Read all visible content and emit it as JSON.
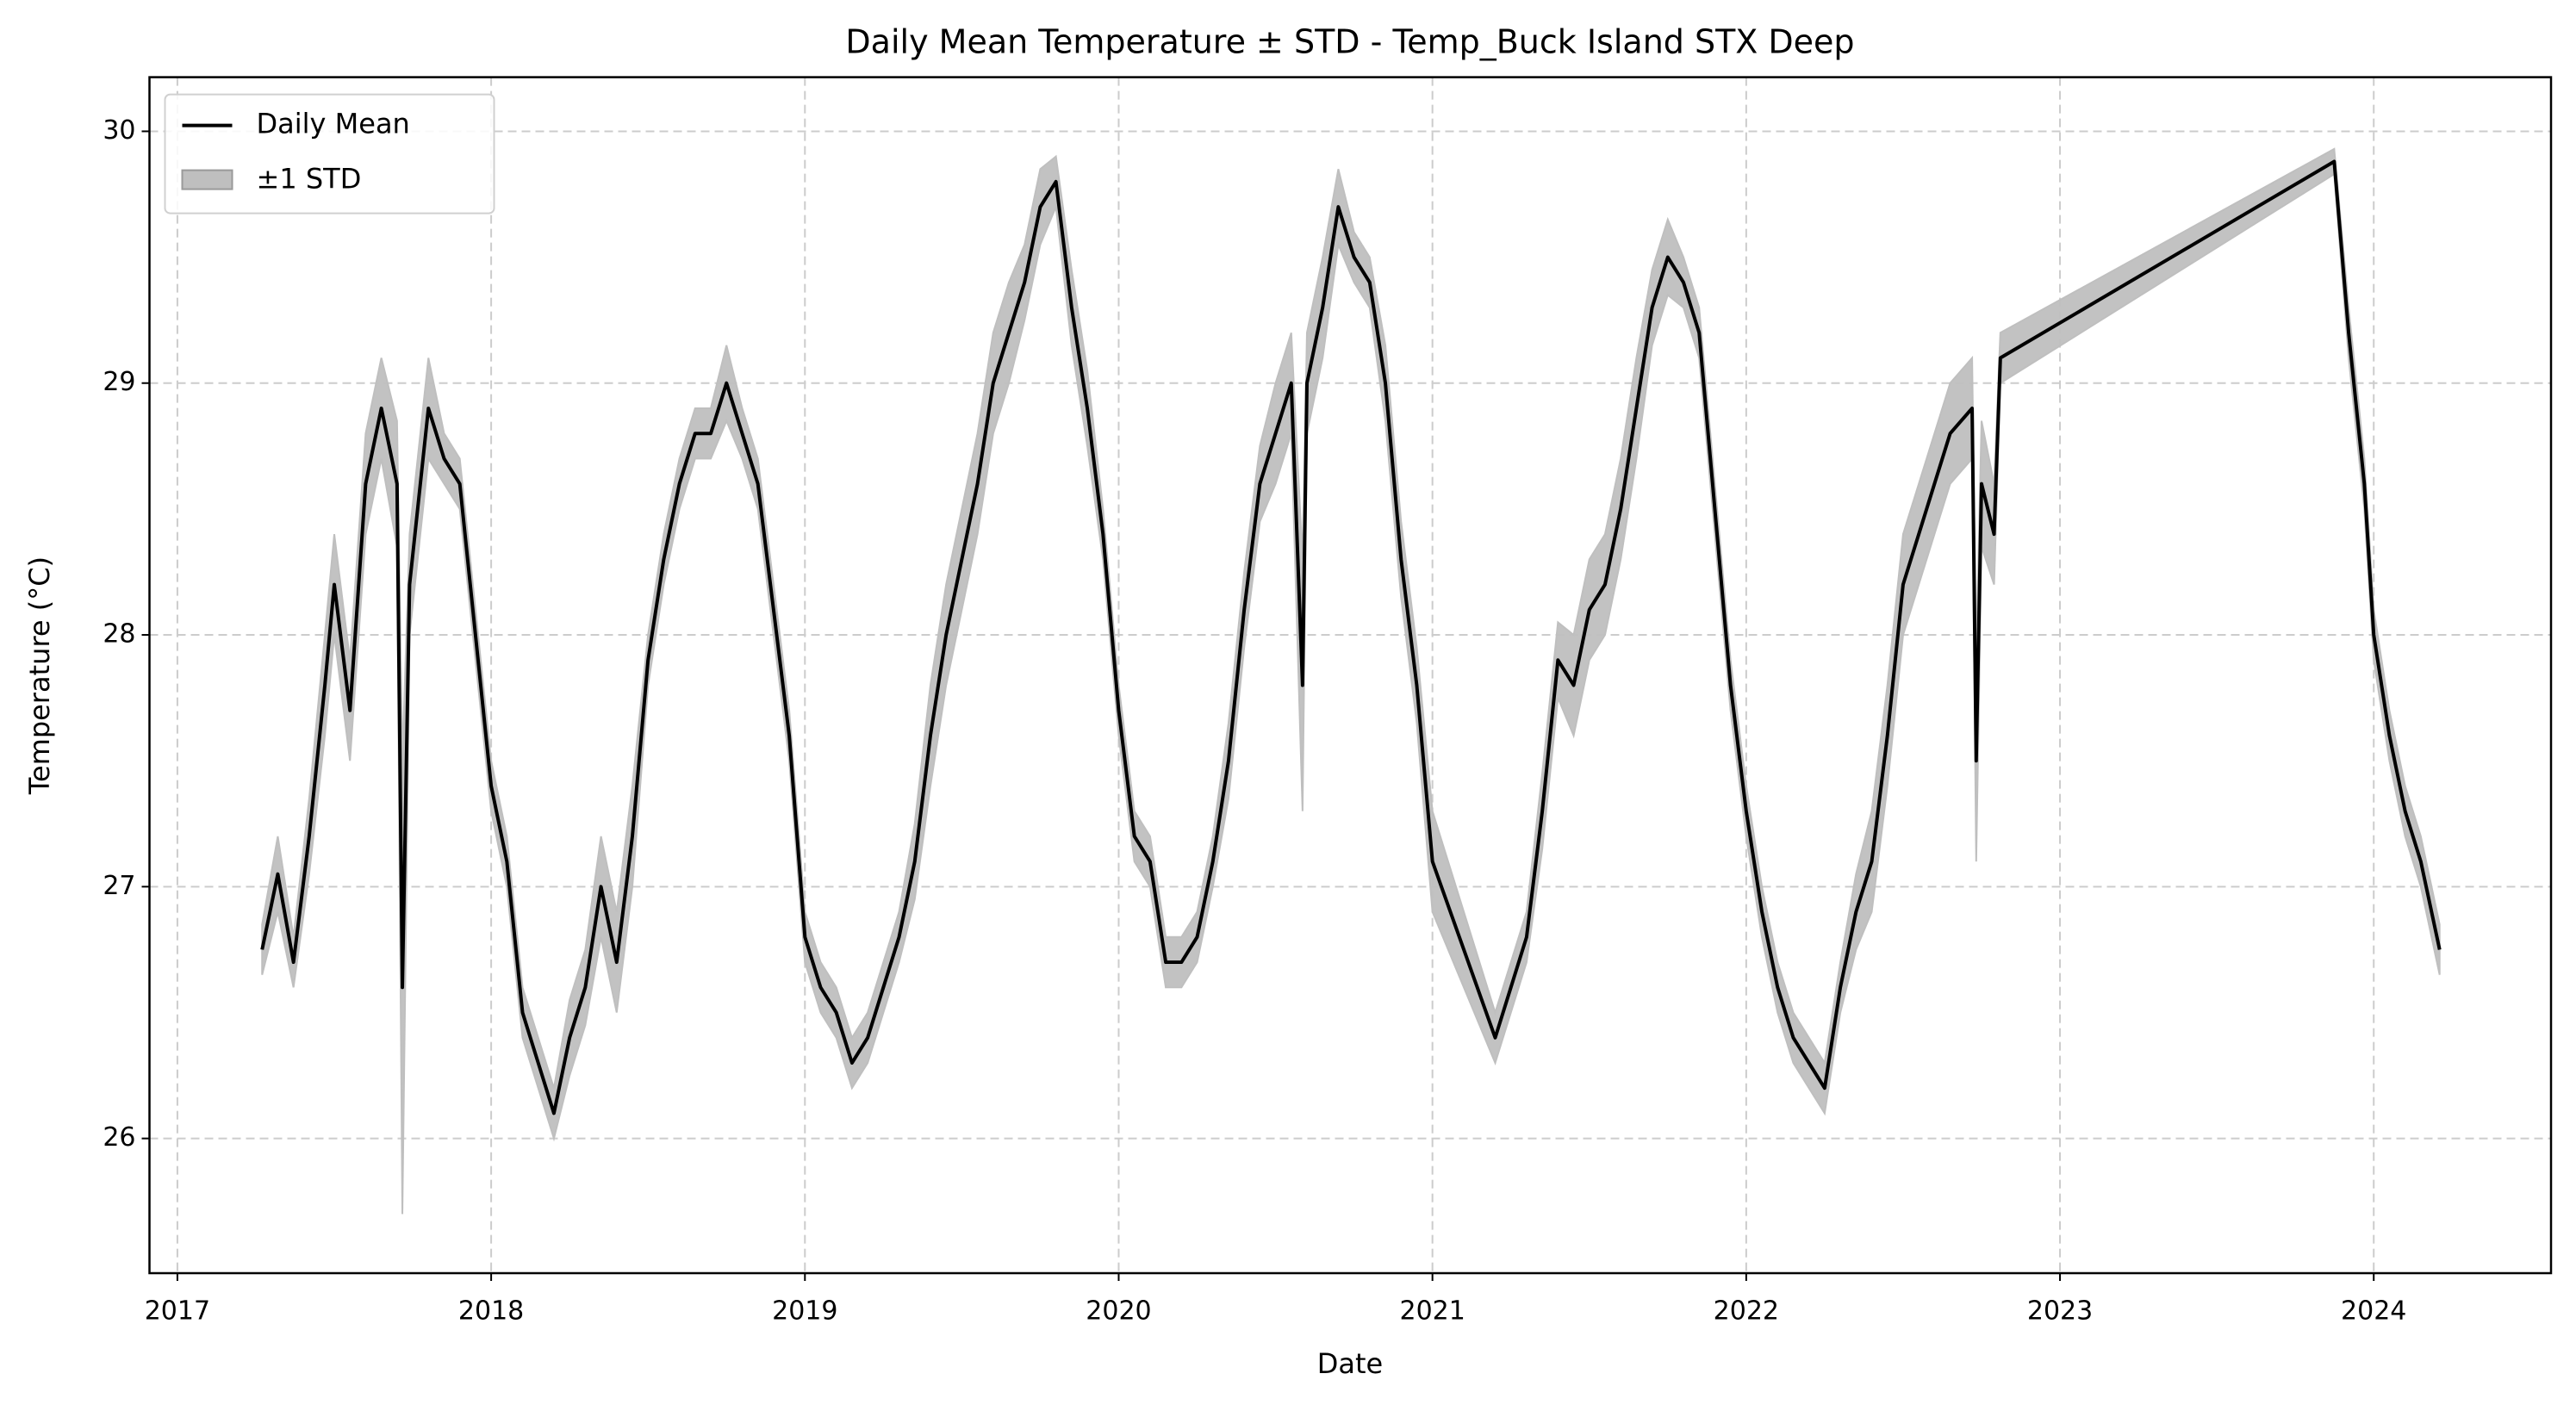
{
  "chart_data": {
    "type": "line",
    "title": "Daily Mean Temperature ± STD - Temp_Buck Island STX Deep",
    "xlabel": "Date",
    "ylabel": "Temperature (°C)",
    "x": [
      2017.27,
      2017.32,
      2017.37,
      2017.42,
      2017.47,
      2017.5,
      2017.55,
      2017.6,
      2017.65,
      2017.7,
      2017.717,
      2017.74,
      2017.8,
      2017.85,
      2017.9,
      2017.95,
      2018.0,
      2018.05,
      2018.1,
      2018.15,
      2018.2,
      2018.25,
      2018.3,
      2018.35,
      2018.4,
      2018.45,
      2018.5,
      2018.55,
      2018.6,
      2018.65,
      2018.7,
      2018.75,
      2018.8,
      2018.85,
      2018.9,
      2018.95,
      2019.0,
      2019.05,
      2019.1,
      2019.15,
      2019.2,
      2019.25,
      2019.3,
      2019.35,
      2019.4,
      2019.45,
      2019.5,
      2019.55,
      2019.6,
      2019.65,
      2019.7,
      2019.75,
      2019.8,
      2019.85,
      2019.9,
      2019.95,
      2020.0,
      2020.05,
      2020.1,
      2020.15,
      2020.2,
      2020.25,
      2020.3,
      2020.35,
      2020.4,
      2020.45,
      2020.5,
      2020.55,
      2020.586,
      2020.6,
      2020.65,
      2020.7,
      2020.75,
      2020.8,
      2020.85,
      2020.9,
      2020.95,
      2021.0,
      2021.2,
      2021.25,
      2021.3,
      2021.35,
      2021.4,
      2021.45,
      2021.5,
      2021.55,
      2021.6,
      2021.65,
      2021.7,
      2021.75,
      2021.8,
      2021.85,
      2021.9,
      2021.95,
      2022.0,
      2022.05,
      2022.1,
      2022.15,
      2022.2,
      2022.25,
      2022.3,
      2022.35,
      2022.4,
      2022.45,
      2022.5,
      2022.55,
      2022.6,
      2022.65,
      2022.72,
      2022.733,
      2022.75,
      2022.79,
      2022.81,
      2023.874,
      2023.92,
      2023.97,
      2024.0,
      2024.05,
      2024.1,
      2024.15,
      2024.21
    ],
    "series": [
      {
        "name": "Daily Mean",
        "color": "#000000",
        "values": [
          26.75,
          27.05,
          26.7,
          27.2,
          27.8,
          28.2,
          27.7,
          28.6,
          28.9,
          28.6,
          26.6,
          28.2,
          28.9,
          28.7,
          28.6,
          28.0,
          27.4,
          27.1,
          26.5,
          26.3,
          26.1,
          26.4,
          26.6,
          27.0,
          26.7,
          27.2,
          27.9,
          28.3,
          28.6,
          28.8,
          28.8,
          29.0,
          28.8,
          28.6,
          28.1,
          27.6,
          26.8,
          26.6,
          26.5,
          26.3,
          26.4,
          26.6,
          26.8,
          27.1,
          27.6,
          28.0,
          28.3,
          28.6,
          29.0,
          29.2,
          29.4,
          29.7,
          29.8,
          29.3,
          28.9,
          28.4,
          27.7,
          27.2,
          27.1,
          26.7,
          26.7,
          26.8,
          27.1,
          27.5,
          28.1,
          28.6,
          28.8,
          29.0,
          27.8,
          29.0,
          29.3,
          29.7,
          29.5,
          29.4,
          29.0,
          28.3,
          27.8,
          27.1,
          26.4,
          26.6,
          26.8,
          27.3,
          27.9,
          27.8,
          28.1,
          28.2,
          28.5,
          28.9,
          29.3,
          29.5,
          29.4,
          29.2,
          28.5,
          27.8,
          27.3,
          26.9,
          26.6,
          26.4,
          26.3,
          26.2,
          26.6,
          26.9,
          27.1,
          27.6,
          28.2,
          28.4,
          28.6,
          28.8,
          28.9,
          27.5,
          28.6,
          28.4,
          29.1,
          29.88,
          29.2,
          28.6,
          28.0,
          27.6,
          27.3,
          27.1,
          26.75
        ]
      },
      {
        "name": "±1 STD",
        "color": "#bfbfbf",
        "values": [
          0.1,
          0.15,
          0.1,
          0.15,
          0.2,
          0.2,
          0.2,
          0.2,
          0.2,
          0.25,
          0.9,
          0.2,
          0.2,
          0.1,
          0.1,
          0.1,
          0.1,
          0.1,
          0.1,
          0.1,
          0.1,
          0.15,
          0.15,
          0.2,
          0.2,
          0.2,
          0.1,
          0.1,
          0.1,
          0.1,
          0.1,
          0.15,
          0.1,
          0.1,
          0.1,
          0.1,
          0.1,
          0.1,
          0.1,
          0.1,
          0.1,
          0.1,
          0.1,
          0.15,
          0.2,
          0.2,
          0.2,
          0.2,
          0.2,
          0.2,
          0.15,
          0.15,
          0.1,
          0.15,
          0.15,
          0.1,
          0.1,
          0.1,
          0.1,
          0.1,
          0.1,
          0.1,
          0.1,
          0.15,
          0.15,
          0.15,
          0.2,
          0.2,
          0.5,
          0.2,
          0.2,
          0.15,
          0.1,
          0.1,
          0.15,
          0.15,
          0.15,
          0.2,
          0.1,
          0.1,
          0.1,
          0.15,
          0.15,
          0.2,
          0.2,
          0.2,
          0.2,
          0.2,
          0.15,
          0.15,
          0.1,
          0.1,
          0.1,
          0.1,
          0.1,
          0.1,
          0.1,
          0.1,
          0.1,
          0.1,
          0.1,
          0.15,
          0.2,
          0.2,
          0.2,
          0.2,
          0.2,
          0.2,
          0.2,
          0.4,
          0.25,
          0.2,
          0.1,
          0.05,
          0.1,
          0.1,
          0.1,
          0.1,
          0.1,
          0.1,
          0.1
        ]
      }
    ],
    "xlim": [
      2016.911,
      2024.565
    ],
    "xticks": [
      2017,
      2018,
      2019,
      2020,
      2021,
      2022,
      2023,
      2024
    ],
    "ylim": [
      25.465,
      30.215
    ],
    "yticks": [
      26,
      27,
      28,
      29,
      30
    ],
    "grid": true,
    "legend": "upper left"
  }
}
